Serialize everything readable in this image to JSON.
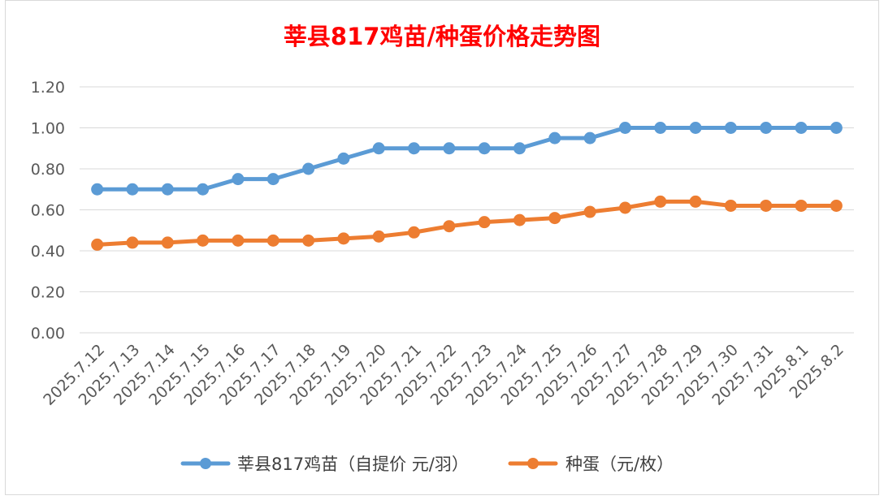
{
  "chart_data": {
    "type": "line",
    "title": "莘县817鸡苗/种蛋价格走势图",
    "xlabel": "",
    "ylabel": "",
    "categories": [
      "2025.7.12",
      "2025.7.13",
      "2025.7.14",
      "2025.7.15",
      "2025.7.16",
      "2025.7.17",
      "2025.7.18",
      "2025.7.19",
      "2025.7.20",
      "2025.7.21",
      "2025.7.22",
      "2025.7.23",
      "2025.7.24",
      "2025.7.25",
      "2025.7.26",
      "2025.7.27",
      "2025.7.28",
      "2025.7.29",
      "2025.7.30",
      "2025.7.31",
      "2025.8.1",
      "2025.8.2"
    ],
    "ylim": [
      0,
      1.2
    ],
    "yticks": [
      "0.00",
      "0.20",
      "0.40",
      "0.60",
      "0.80",
      "1.00",
      "1.20"
    ],
    "grid": true,
    "legend_position": "bottom",
    "series": [
      {
        "name": "莘县817鸡苗（自提价 元/羽）",
        "color": "#5b9bd5",
        "values": [
          0.7,
          0.7,
          0.7,
          0.7,
          0.75,
          0.75,
          0.8,
          0.85,
          0.9,
          0.9,
          0.9,
          0.9,
          0.9,
          0.95,
          0.95,
          1.0,
          1.0,
          1.0,
          1.0,
          1.0,
          1.0,
          1.0
        ]
      },
      {
        "name": "种蛋（元/枚）",
        "color": "#ed7d31",
        "values": [
          0.43,
          0.44,
          0.44,
          0.45,
          0.45,
          0.45,
          0.45,
          0.46,
          0.47,
          0.49,
          0.52,
          0.54,
          0.55,
          0.56,
          0.59,
          0.61,
          0.64,
          0.64,
          0.62,
          0.62,
          0.62,
          0.62
        ]
      }
    ]
  }
}
